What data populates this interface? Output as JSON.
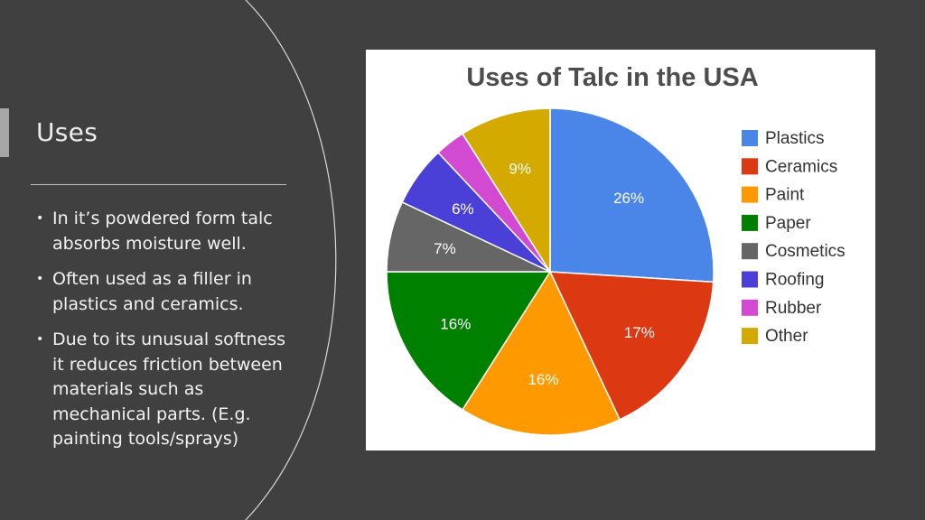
{
  "slide": {
    "title": "Uses",
    "bullets": [
      "In it’s powdered form talc absorbs moisture well.",
      "Often used as a filler in plastics and ceramics.",
      "Due to its unusual softness it reduces friction between materials such as mechanical parts. (E.g. painting tools/sprays)"
    ]
  },
  "chart_data": {
    "type": "pie",
    "title": "Uses of Talc in the USA",
    "slices": [
      {
        "label": "Plastics",
        "value": 26,
        "display": "26%",
        "color": "#4a86e8"
      },
      {
        "label": "Ceramics",
        "value": 17,
        "display": "17%",
        "color": "#dc3912"
      },
      {
        "label": "Paint",
        "value": 16,
        "display": "16%",
        "color": "#ff9900"
      },
      {
        "label": "Paper",
        "value": 16,
        "display": "16%",
        "color": "#008000"
      },
      {
        "label": "Cosmetics",
        "value": 7,
        "display": "7%",
        "color": "#666666"
      },
      {
        "label": "Roofing",
        "value": 6,
        "display": "6%",
        "color": "#4a3fd6"
      },
      {
        "label": "Rubber",
        "value": 3,
        "display": "",
        "color": "#d24ad2"
      },
      {
        "label": "Other",
        "value": 9,
        "display": "9%",
        "color": "#d4aa00"
      }
    ],
    "legend_position": "right"
  }
}
